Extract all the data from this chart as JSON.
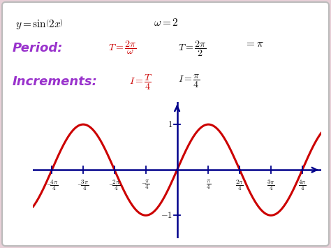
{
  "bg_color": "#e8d0d8",
  "panel_color": "#ffffff",
  "curve_color": "#cc0000",
  "axis_color": "#00008b",
  "red_color": "#cc0000",
  "purple_color": "#9932cc",
  "black_color": "#111111",
  "ylim": [
    -1.5,
    1.5
  ],
  "xlim": [
    -4.6,
    4.6
  ],
  "tick_positions": [
    -4,
    -3,
    -2,
    -1,
    1,
    2,
    3,
    4
  ]
}
